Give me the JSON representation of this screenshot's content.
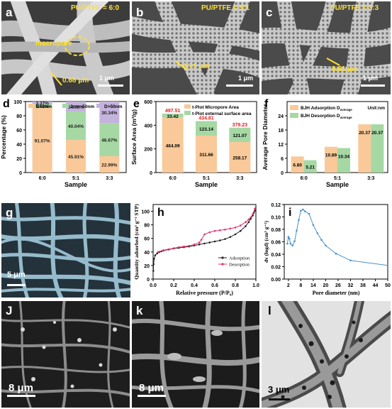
{
  "figure": {
    "panel_a": {
      "letter": "a",
      "condition": "PU/PTFE = 6:0",
      "annotation": "macropore",
      "measure": "0.68 μm",
      "scale_bar": "1 μm"
    },
    "panel_b": {
      "letter": "b",
      "condition": "PU/PTFE = 5:1",
      "measure": "0.71 μm",
      "scale_bar": "1 μm"
    },
    "panel_c": {
      "letter": "c",
      "condition": "PU/PTFE = 3:3",
      "measure": "0.61 μm",
      "scale_bar": "1 μm"
    },
    "panel_g": {
      "letter": "g",
      "scale_bar": "5 μm"
    },
    "panel_j": {
      "letter": "J",
      "scale_bar": "8 μm"
    },
    "panel_k": {
      "letter": "k",
      "scale_bar": "8 μm"
    },
    "panel_l": {
      "letter": "l",
      "scale_bar": "3 μm"
    }
  },
  "chart_data": [
    {
      "panel": "d",
      "type": "bar",
      "stacked": true,
      "categories": [
        "6:0",
        "5:1",
        "3:3"
      ],
      "xlabel": "Sample",
      "ylabel": "Percentage (%)",
      "ylim": [
        0,
        100
      ],
      "yticks": [
        "0",
        "20",
        "40",
        "60",
        "80",
        "100"
      ],
      "series": [
        {
          "name": "D<2nm",
          "values": [
            91.07,
            45.91,
            22.99
          ],
          "labels": [
            "91.07%",
            "45.91%",
            "22.99%"
          ],
          "color": "#f9c999"
        },
        {
          "name": "2nm~50nm",
          "values": [
            5.56,
            40.04,
            46.67
          ],
          "labels": [
            "5.56%",
            "40.04%",
            "46.67%"
          ],
          "color": "#a6d8a4"
        },
        {
          "name": "D>50nm",
          "values": [
            3.37,
            14.05,
            30.34
          ],
          "labels": [
            "3.37%",
            "14.05%",
            "30.34%"
          ],
          "color": "#c4b3dc"
        }
      ]
    },
    {
      "panel": "e",
      "type": "bar",
      "stacked": true,
      "categories": [
        "6:0",
        "5:1",
        "3:3"
      ],
      "xlabel": "Sample",
      "ylabel": "Surface Area (m²/g)",
      "ylim": [
        0,
        600
      ],
      "yticks": [
        "0",
        "200",
        "400",
        "600"
      ],
      "totals": [
        497.51,
        434.81,
        379.23
      ],
      "total_labels": [
        "497.51",
        "434.81",
        "379.23"
      ],
      "series": [
        {
          "name": "t-Plot Micropore Area",
          "values": [
            464.09,
            311.66,
            258.17
          ],
          "labels": [
            "464.09",
            "311.66",
            "258.17"
          ],
          "color": "#f9c999"
        },
        {
          "name": "t-Plot external surface area",
          "values": [
            33.42,
            123.14,
            121.07
          ],
          "labels": [
            "33.42",
            "123.14",
            "121.07"
          ],
          "color": "#a6d8a4"
        }
      ]
    },
    {
      "panel": "f",
      "type": "bar",
      "categories": [
        "6:0",
        "5:1",
        "3:3"
      ],
      "xlabel": "Sample",
      "ylabel": "Average Pore Diameter",
      "ylim": [
        0,
        30
      ],
      "yticks": [
        "0",
        "6",
        "12",
        "18",
        "24"
      ],
      "unit_note": "Unit:nm",
      "series": [
        {
          "name": "BJH Adsorption D",
          "name_sub": "average",
          "values": [
            6.8,
            10.89,
            20.37
          ],
          "labels": [
            "6.80",
            "10.89",
            "20.37"
          ],
          "color": "#f9c999"
        },
        {
          "name": "BJH Desorption D",
          "name_sub": "average",
          "values": [
            5.21,
            10.34,
            20.37
          ],
          "labels": [
            "5.21",
            "10.34",
            "20.37"
          ],
          "color": "#a6d8a4"
        }
      ]
    },
    {
      "panel": "h",
      "type": "line",
      "xlabel": "Relative pressure (P/P₀)",
      "ylabel": "Quantity adsorbed (cm³ g⁻¹ STP)",
      "xlim": [
        0,
        1
      ],
      "ylim": [
        0,
        110
      ],
      "xticks": [
        "0.0",
        "0.2",
        "0.4",
        "0.6",
        "0.8",
        "1.0"
      ],
      "yticks": [
        "0",
        "20",
        "40",
        "60",
        "80",
        "100"
      ],
      "series": [
        {
          "name": "Adsorption",
          "color": "#222222",
          "points": [
            [
              0.002,
              12
            ],
            [
              0.005,
              22
            ],
            [
              0.01,
              30
            ],
            [
              0.02,
              35
            ],
            [
              0.04,
              38
            ],
            [
              0.06,
              40
            ],
            [
              0.08,
              41
            ],
            [
              0.1,
              42
            ],
            [
              0.15,
              43.5
            ],
            [
              0.2,
              45
            ],
            [
              0.25,
              46
            ],
            [
              0.3,
              47
            ],
            [
              0.35,
              48
            ],
            [
              0.4,
              49.5
            ],
            [
              0.45,
              51
            ],
            [
              0.5,
              52.5
            ],
            [
              0.55,
              54
            ],
            [
              0.6,
              55.5
            ],
            [
              0.65,
              57
            ],
            [
              0.7,
              59
            ],
            [
              0.75,
              62
            ],
            [
              0.8,
              66
            ],
            [
              0.85,
              71
            ],
            [
              0.9,
              78
            ],
            [
              0.93,
              84
            ],
            [
              0.95,
              89
            ],
            [
              0.97,
              94
            ],
            [
              0.98,
              98
            ],
            [
              0.99,
              101
            ]
          ]
        },
        {
          "name": "Desorption",
          "color": "#e0306a",
          "points": [
            [
              0.99,
              104
            ],
            [
              0.97,
              96
            ],
            [
              0.95,
              91
            ],
            [
              0.93,
              88
            ],
            [
              0.9,
              84
            ],
            [
              0.85,
              79
            ],
            [
              0.8,
              76
            ],
            [
              0.75,
              74.5
            ],
            [
              0.7,
              73
            ],
            [
              0.65,
              72
            ],
            [
              0.6,
              71
            ],
            [
              0.55,
              69
            ],
            [
              0.5,
              66
            ],
            [
              0.47,
              58
            ],
            [
              0.45,
              54
            ],
            [
              0.4,
              51
            ],
            [
              0.35,
              49
            ],
            [
              0.3,
              48
            ],
            [
              0.25,
              47
            ],
            [
              0.2,
              45.5
            ],
            [
              0.15,
              44
            ],
            [
              0.1,
              42.5
            ],
            [
              0.05,
              40
            ]
          ]
        }
      ]
    },
    {
      "panel": "i",
      "type": "line",
      "xlabel": "Pore diameter (nm)",
      "ylabel": "dv (logd) (cm³ g⁻¹)",
      "xlim": [
        0,
        50
      ],
      "ylim": [
        0,
        0.12
      ],
      "xticks": [
        "2",
        "8",
        "14",
        "20",
        "26",
        "32",
        "38",
        "44",
        "50"
      ],
      "yticks": [
        "0.00",
        "0.02",
        "0.04",
        "0.06",
        "0.08",
        "0.10",
        "0.12"
      ],
      "series": [
        {
          "name": "",
          "color": "#4a90c8",
          "points": [
            [
              1.5,
              0.057
            ],
            [
              2,
              0.068
            ],
            [
              2.5,
              0.065
            ],
            [
              3,
              0.057
            ],
            [
              4,
              0.054
            ],
            [
              5,
              0.061
            ],
            [
              6,
              0.078
            ],
            [
              7,
              0.095
            ],
            [
              8,
              0.11
            ],
            [
              9,
              0.112
            ],
            [
              10,
              0.109
            ],
            [
              12,
              0.105
            ],
            [
              14,
              0.087
            ],
            [
              16,
              0.074
            ],
            [
              18,
              0.063
            ],
            [
              20,
              0.054
            ],
            [
              25,
              0.041
            ],
            [
              32,
              0.03
            ],
            [
              50,
              0.022
            ]
          ]
        }
      ]
    }
  ]
}
